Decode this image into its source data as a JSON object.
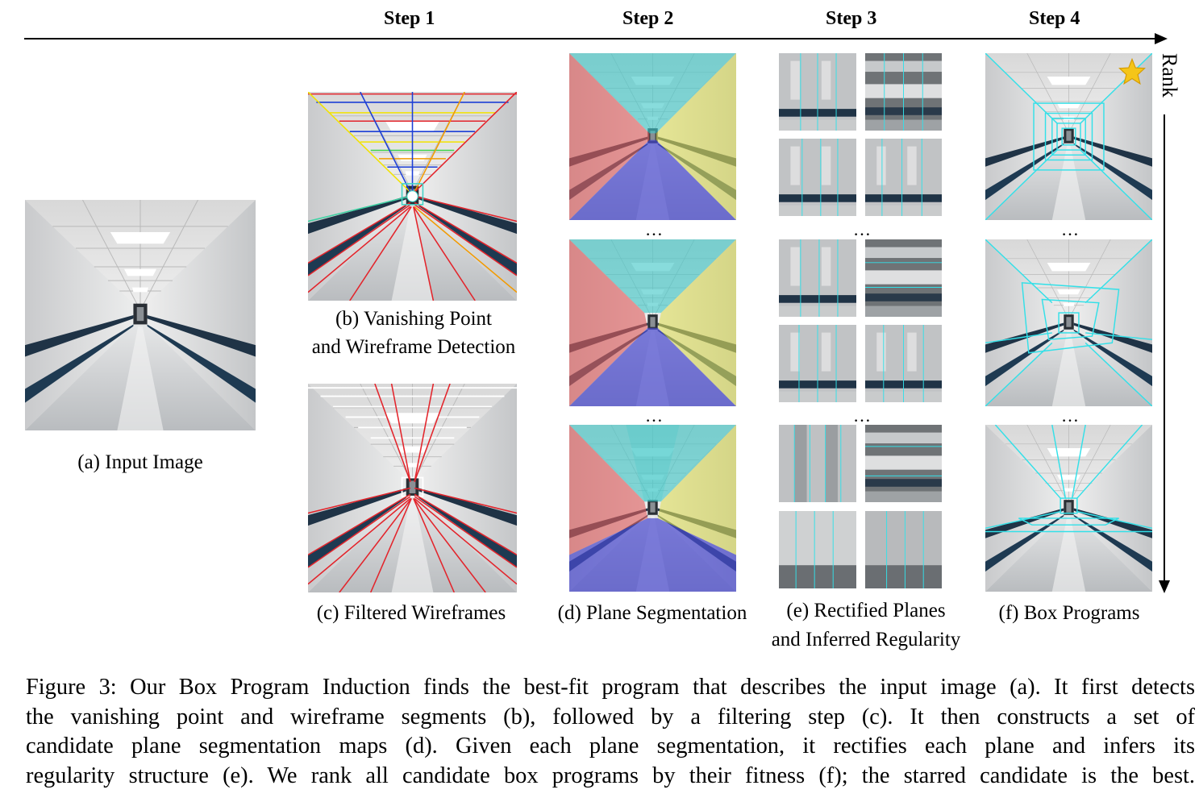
{
  "steps": [
    "Step 1",
    "Step 2",
    "Step 3",
    "Step 4"
  ],
  "rank_label": "Rank",
  "ellipsis": "…",
  "labels": {
    "a": "(a) Input Image",
    "b1": "(b) Vanishing Point",
    "b2": "and Wireframe Detection",
    "c": "(c) Filtered Wireframes",
    "d": "(d) Plane Segmentation",
    "e1": "(e) Rectified Planes",
    "e2": "and Inferred Regularity",
    "f": "(f) Box Programs"
  },
  "caption": [
    "Figure 3: Our Box Program Induction finds the best-fit program that describes the input image (a). It first detects",
    "the vanishing point and wireframe segments (b), followed by a filtering step (c). It then constructs a set of",
    "candidate plane segmentation maps (d). Given each plane segmentation, it rectifies each plane and infers its",
    "regularity structure (e). We rank all candidate box programs by their fitness (f); the starred candidate is the best."
  ],
  "colors": {
    "wireframe_red": "#e3242b",
    "segment_cyan": "#3fc6c6",
    "segment_red": "#e06060",
    "segment_yellow": "#dede60",
    "segment_blue": "#4a4ad0",
    "box_cyan": "#33e0e8",
    "star": "#f5c518"
  },
  "icons": {
    "best_candidate": "star-icon"
  }
}
